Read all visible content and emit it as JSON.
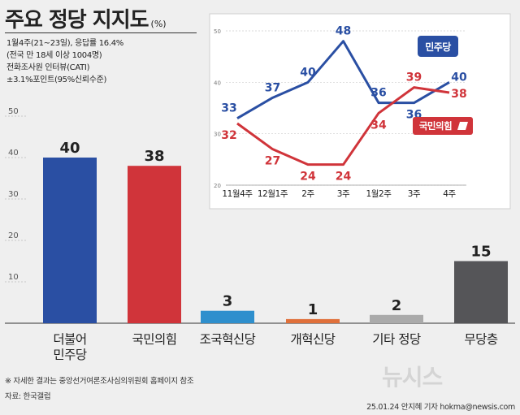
{
  "title": "주요 정당 지지도",
  "unit": "(%)",
  "survey": [
    "1월4주(21~23일), 응답률 16.4%",
    "(전국 만 18세 이상 1004명)",
    "전화조사원 인터뷰(CATI)",
    "±3.1%포인트(95%신뢰수준)"
  ],
  "colors": {
    "democratic": "#2a4fa3",
    "ppp": "#d0343a",
    "rebuilding": "#2e8fcd",
    "reform": "#e0703a",
    "other": "#aaaaaa",
    "none": "#555558"
  },
  "chart_data": [
    {
      "type": "bar",
      "categories": [
        "더불어\n민주당",
        "국민의힘",
        "조국혁신당",
        "개혁신당",
        "기타 정당",
        "무당층"
      ],
      "values": [
        40,
        38,
        3,
        1,
        2,
        15
      ],
      "yticks": [
        10,
        20,
        30,
        40,
        50
      ],
      "ylim": [
        0,
        50
      ]
    },
    {
      "type": "line",
      "x": [
        "11월4주",
        "12월1주",
        "2주",
        "3주",
        "1월2주",
        "3주",
        "4주"
      ],
      "series": [
        {
          "name": "민주당",
          "values": [
            33,
            37,
            40,
            48,
            36,
            36,
            40
          ]
        },
        {
          "name": "국민의힘",
          "values": [
            32,
            27,
            24,
            24,
            34,
            39,
            38
          ]
        }
      ],
      "yticks": [
        20,
        30,
        40,
        50
      ],
      "ylim": [
        20,
        50
      ]
    }
  ],
  "footer": {
    "note": "※ 자세한 결과는 중앙선거여론조사심의위원회 홈페이지 참조",
    "source": "자료: 한국갤럽",
    "credit": "25.01.24 안지혜 기자 hokma@newsis.com",
    "logo": "뉴시스"
  }
}
